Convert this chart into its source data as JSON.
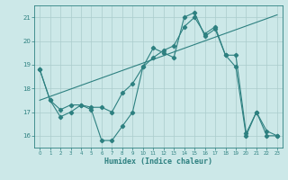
{
  "xlabel": "Humidex (Indice chaleur)",
  "bg_color": "#cce8e8",
  "grid_color": "#aacccc",
  "line_color": "#2d8080",
  "xlim": [
    -0.5,
    23.5
  ],
  "ylim": [
    15.5,
    21.5
  ],
  "yticks": [
    16,
    17,
    18,
    19,
    20,
    21
  ],
  "xticks": [
    0,
    1,
    2,
    3,
    4,
    5,
    6,
    7,
    8,
    9,
    10,
    11,
    12,
    13,
    14,
    15,
    16,
    17,
    18,
    19,
    20,
    21,
    22,
    23
  ],
  "series1_x": [
    0,
    1,
    2,
    3,
    4,
    5,
    6,
    7,
    8,
    9,
    10,
    11,
    12,
    13,
    14,
    15,
    16,
    17,
    18,
    19,
    20,
    21,
    22,
    23
  ],
  "series1_y": [
    18.8,
    17.5,
    16.8,
    17.0,
    17.3,
    17.1,
    15.8,
    15.8,
    16.4,
    17.0,
    18.9,
    19.7,
    19.5,
    19.3,
    21.0,
    21.2,
    20.2,
    20.5,
    19.4,
    18.9,
    16.0,
    17.0,
    16.0,
    16.0
  ],
  "series2_x": [
    0,
    1,
    2,
    3,
    4,
    5,
    6,
    7,
    8,
    9,
    10,
    11,
    12,
    13,
    14,
    15,
    16,
    17,
    18,
    19,
    20,
    21,
    22,
    23
  ],
  "series2_y": [
    18.8,
    17.5,
    17.1,
    17.3,
    17.3,
    17.2,
    17.2,
    17.0,
    17.8,
    18.2,
    18.9,
    19.3,
    19.6,
    19.8,
    20.6,
    21.0,
    20.3,
    20.6,
    19.4,
    19.4,
    16.1,
    17.0,
    16.2,
    16.0
  ],
  "trend_x": [
    0,
    23
  ],
  "trend_y": [
    17.5,
    21.1
  ]
}
